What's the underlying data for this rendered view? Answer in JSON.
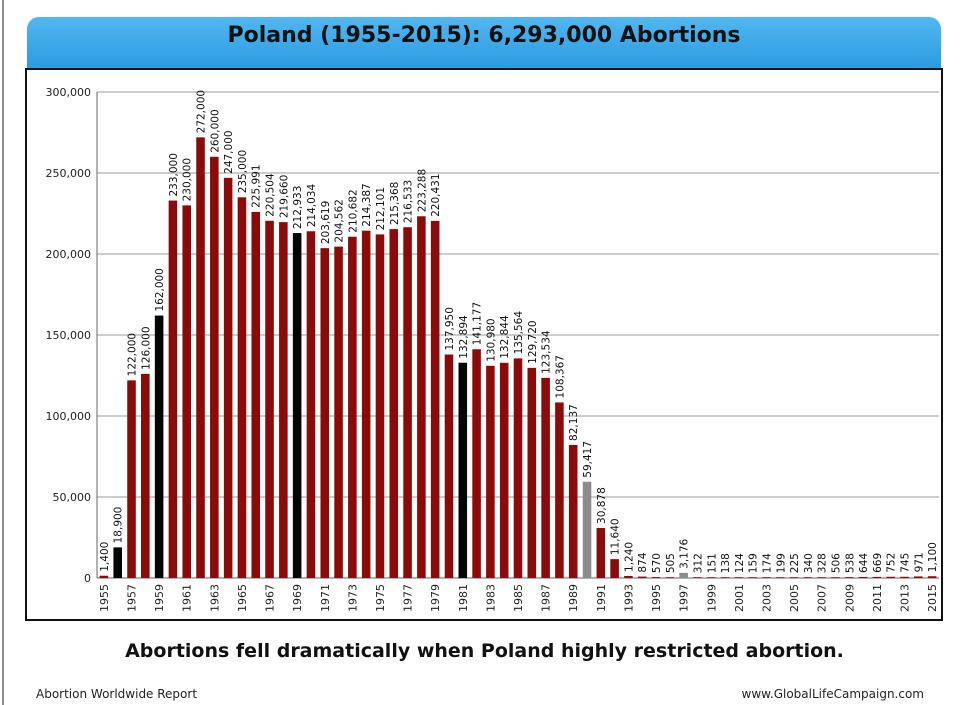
{
  "header": {
    "title": "Poland (1955-2015):  6,293,000 Abortions"
  },
  "caption": "Abortions fell dramatically when Poland highly restricted abortion.",
  "footer": {
    "left": "Abortion Worldwide Report",
    "right": "www.GlobalLifeCampaign.com"
  },
  "colors": {
    "default": "#8b0a0a",
    "highlight": "#050505",
    "gray": "#8c8c8c",
    "banner": "#3aa8ea"
  },
  "chart_data": {
    "type": "bar",
    "ylim": [
      0,
      300000
    ],
    "yticks": [
      0,
      50000,
      100000,
      150000,
      200000,
      250000,
      300000
    ],
    "ytick_labels": [
      "0",
      "50,000",
      "100,000",
      "150,000",
      "200,000",
      "250,000",
      "300,000"
    ],
    "grid": true,
    "categories": [
      "1955",
      "1956",
      "1957",
      "1958",
      "1959",
      "1960",
      "1961",
      "1962",
      "1963",
      "1964",
      "1965",
      "1966",
      "1967",
      "1968",
      "1969",
      "1970",
      "1971",
      "1972",
      "1973",
      "1974",
      "1975",
      "1976",
      "1977",
      "1978",
      "1979",
      "1980",
      "1981",
      "1982",
      "1983",
      "1984",
      "1985",
      "1986",
      "1987",
      "1988",
      "1989",
      "1990",
      "1991",
      "1992",
      "1993",
      "1994",
      "1995",
      "1996",
      "1997",
      "1998",
      "1999",
      "2000",
      "2001",
      "2002",
      "2003",
      "2004",
      "2005",
      "2006",
      "2007",
      "2008",
      "2009",
      "2010",
      "2011",
      "2012",
      "2013",
      "2014",
      "2015"
    ],
    "values": [
      1400,
      18900,
      122000,
      126000,
      162000,
      233000,
      230000,
      272000,
      260000,
      247000,
      235000,
      225991,
      220504,
      219660,
      212933,
      214034,
      203619,
      204562,
      210682,
      214387,
      212101,
      215368,
      216533,
      223288,
      220431,
      137950,
      132894,
      141177,
      130980,
      132844,
      135564,
      129720,
      123534,
      108367,
      82137,
      59417,
      30878,
      11640,
      1240,
      874,
      570,
      505,
      3176,
      312,
      151,
      138,
      124,
      159,
      174,
      199,
      225,
      340,
      328,
      506,
      538,
      644,
      669,
      752,
      745,
      971,
      1100
    ],
    "value_labels": [
      "1,400",
      "18,900",
      "122,000",
      "126,000",
      "162,000",
      "233,000",
      "230,000",
      "272,000",
      "260,000",
      "247,000",
      "235,000",
      "225,991",
      "220,504",
      "219,660",
      "212,933",
      "214,034",
      "203,619",
      "204,562",
      "210,682",
      "214,387",
      "212,101",
      "215,368",
      "216,533",
      "223,288",
      "220,431",
      "137,950",
      "132,894",
      "141,177",
      "130,980",
      "132,844",
      "135,564",
      "129,720",
      "123,534",
      "108,367",
      "82,137",
      "59,417",
      "30,878",
      "11,640",
      "1,240",
      "874",
      "570",
      "505",
      "3,176",
      "312",
      "151",
      "138",
      "124",
      "159",
      "174",
      "199",
      "225",
      "340",
      "328",
      "506",
      "538",
      "644",
      "669",
      "752",
      "745",
      "971",
      "1,100"
    ],
    "x_tick_labels": [
      "1955",
      "1957",
      "1959",
      "1961",
      "1963",
      "1965",
      "1967",
      "1969",
      "1971",
      "1973",
      "1975",
      "1977",
      "1979",
      "1981",
      "1983",
      "1985",
      "1987",
      "1989",
      "1991",
      "1993",
      "1995",
      "1997",
      "1999",
      "2001",
      "2003",
      "2005",
      "2007",
      "2009",
      "2011",
      "2013",
      "2015"
    ],
    "bar_colors": [
      "default",
      "highlight",
      "default",
      "default",
      "highlight",
      "default",
      "default",
      "default",
      "default",
      "default",
      "default",
      "default",
      "default",
      "default",
      "highlight",
      "default",
      "default",
      "default",
      "default",
      "default",
      "default",
      "default",
      "default",
      "default",
      "default",
      "default",
      "highlight",
      "default",
      "default",
      "default",
      "default",
      "default",
      "default",
      "default",
      "default",
      "gray",
      "default",
      "default",
      "default",
      "default",
      "default",
      "default",
      "gray",
      "default",
      "default",
      "default",
      "default",
      "default",
      "default",
      "default",
      "default",
      "default",
      "default",
      "default",
      "default",
      "default",
      "default",
      "default",
      "default",
      "default",
      "default"
    ]
  }
}
